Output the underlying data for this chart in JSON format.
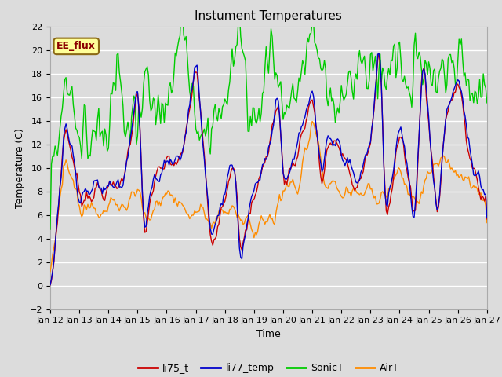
{
  "title": "Instument Temperatures",
  "xlabel": "Time",
  "ylabel": "Temperature (C)",
  "ylim": [
    -2,
    22
  ],
  "bg_color": "#dcdcdc",
  "fig_bg": "#dcdcdc",
  "grid_color": "white",
  "tick_labels": [
    "Jan 12",
    "Jan 13",
    "Jan 14",
    "Jan 15",
    "Jan 16",
    "Jan 17",
    "Jan 18",
    "Jan 19",
    "Jan 20",
    "Jan 21",
    "Jan 22",
    "Jan 23",
    "Jan 24",
    "Jan 25",
    "Jan 26",
    "Jan 27"
  ],
  "annotation_text": "EE_flux",
  "legend_labels": [
    "li75_t",
    "li77_temp",
    "SonicT",
    "AirT"
  ],
  "colors": {
    "li75_t": "#cc0000",
    "li77_temp": "#0000cc",
    "SonicT": "#00cc00",
    "AirT": "#ff8c00"
  },
  "line_width": 1.0,
  "title_fontsize": 11,
  "label_fontsize": 9,
  "tick_fontsize": 8
}
